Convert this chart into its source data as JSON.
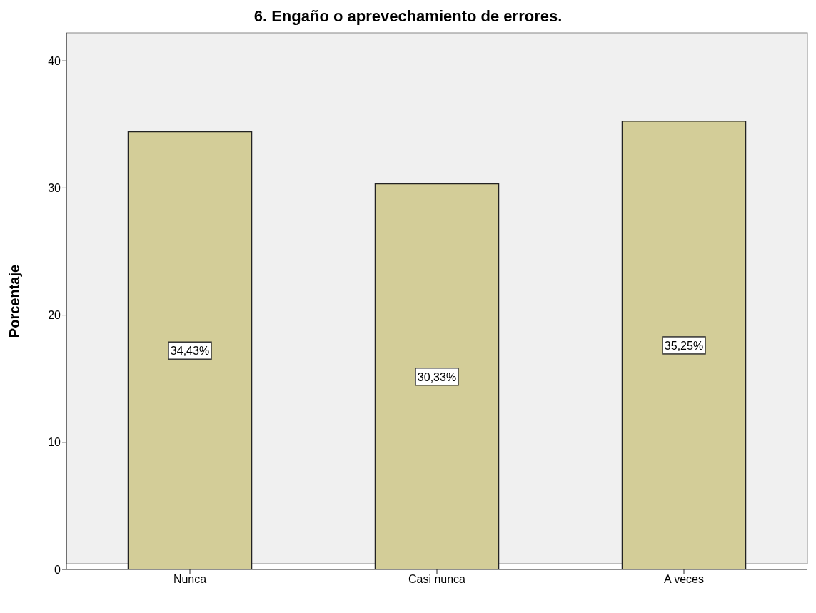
{
  "chart_data": {
    "type": "bar",
    "title": "6. Engaño o aprevechamiento de errores.",
    "ylabel": "Porcentaje",
    "categories": [
      "Nunca",
      "Casi nunca",
      "A veces"
    ],
    "values": [
      34.43,
      30.33,
      35.25
    ],
    "value_labels": [
      "34,43%",
      "30,33%",
      "35,25%"
    ],
    "color": "#d3cd98",
    "ylim": [
      0,
      42.2
    ],
    "yticks": [
      0,
      10,
      20,
      30,
      40
    ],
    "grid": false,
    "legend": false
  }
}
